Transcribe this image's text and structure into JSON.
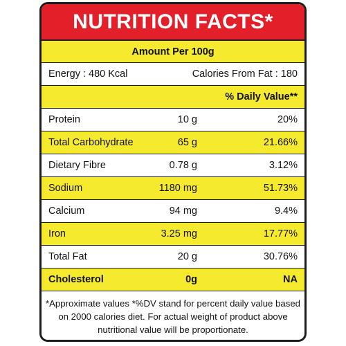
{
  "colors": {
    "header_bg": "#e3202a",
    "highlight_bg": "#f6ea2e",
    "plain_bg": "#ffffff",
    "border": "#1c1c1c"
  },
  "title": "NUTRITION FACTS*",
  "amount_per": "Amount Per 100g",
  "energy": {
    "left": "Energy : 480 Kcal",
    "right": "Calories From Fat : 180"
  },
  "dv_header": "% Daily Value**",
  "nutrients": [
    {
      "name": "Protein",
      "amount": "10 g",
      "dv": "20%"
    },
    {
      "name": "Total Carbohydrate",
      "amount": "65 g",
      "dv": "21.66%"
    },
    {
      "name": "Dietary Fibre",
      "amount": "0.78 g",
      "dv": "3.12%"
    },
    {
      "name": "Sodium",
      "amount": "1180 mg",
      "dv": "51.73%"
    },
    {
      "name": "Calcium",
      "amount": "94 mg",
      "dv": "9.4%"
    },
    {
      "name": "Iron",
      "amount": "3.25 mg",
      "dv": "17.77%"
    },
    {
      "name": "Total Fat",
      "amount": "20 g",
      "dv": "30.76%"
    },
    {
      "name": "Cholesterol",
      "amount": "0g",
      "dv": "NA"
    }
  ],
  "footnote": "*Approximate values *%DV stand for percent daily value based on 2000 calories diet. For actual weight of product above nutritional value will be proportionate."
}
